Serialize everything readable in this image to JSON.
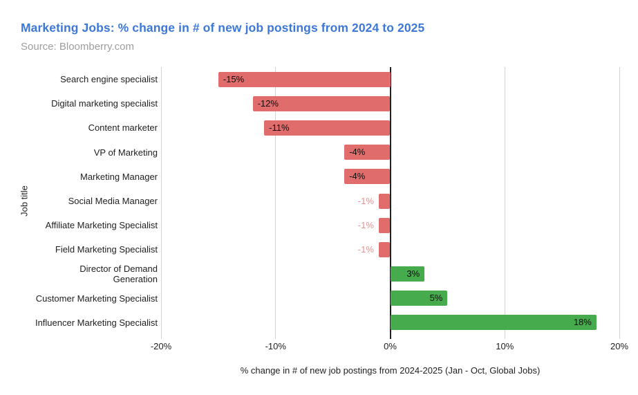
{
  "header": {
    "title": "Marketing Jobs: % change in # of new job postings from 2024 to 2025",
    "source": "Source: Bloomberry.com"
  },
  "colors": {
    "title_text": "#3d78d8",
    "source_text": "#9e9e9e",
    "negative_bar": "#e06c6c",
    "positive_bar": "#46ab4c",
    "outside_label": "#ea9191",
    "grid_line": "#d2d2d2",
    "zero_axis": "#212121"
  },
  "chart_data": {
    "type": "bar",
    "orientation": "horizontal",
    "title": "Marketing Jobs: % change in # of new job postings from 2024 to 2025",
    "source": "Source: Bloomberry.com",
    "xlabel": "% change in # of new job postings from 2024-2025 (Jan - Oct, Global Jobs)",
    "ylabel": "Job title",
    "xlim": [
      -20,
      20
    ],
    "x_tick_values": [
      -20,
      -10,
      0,
      10,
      20
    ],
    "x_tick_labels": [
      "-20%",
      "-10%",
      "0%",
      "10%",
      "20%"
    ],
    "grid": true,
    "legend": "none",
    "categories": [
      "Search engine specialist",
      "Digital marketing specialist",
      "Content marketer",
      "VP of Marketing",
      "Marketing Manager",
      "Social Media Manager",
      "Affiliate Marketing Specialist",
      "Field Marketing Specialist",
      "Director of Demand Generation",
      "Customer Marketing Specialist",
      "Influencer Marketing Specialist"
    ],
    "category_display_lines": [
      [
        "Search engine specialist"
      ],
      [
        "Digital marketing specialist"
      ],
      [
        "Content marketer"
      ],
      [
        "VP of Marketing"
      ],
      [
        "Marketing Manager"
      ],
      [
        "Social Media Manager"
      ],
      [
        "Affiliate Marketing Specialist"
      ],
      [
        "Field Marketing Specialist"
      ],
      [
        "Director of Demand",
        "Generation"
      ],
      [
        "Customer Marketing Specialist"
      ],
      [
        "Influencer Marketing Specialist"
      ]
    ],
    "values": [
      -15,
      -12,
      -11,
      -4,
      -4,
      -1,
      -1,
      -1,
      3,
      5,
      18
    ],
    "value_labels": [
      "-15%",
      "-12%",
      "-11%",
      "-4%",
      "-4%",
      "-1%",
      "-1%",
      "-1%",
      "3%",
      "5%",
      "18%"
    ]
  }
}
